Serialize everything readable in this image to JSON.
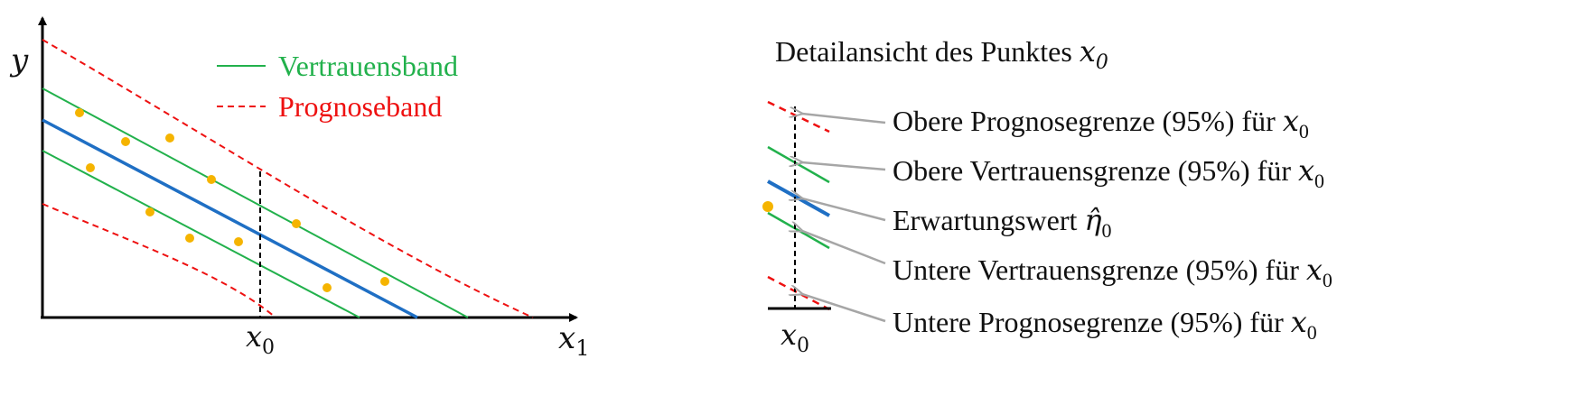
{
  "colors": {
    "regression": "#1f6fc4",
    "confidence": "#22b14c",
    "prediction": "#ee1111",
    "points": "#f5b400",
    "annotation_arrow": "#a6a6a6",
    "text": "#111111",
    "axis": "#000000"
  },
  "left_plot": {
    "axis_x_label": "x",
    "axis_x_sub": "1",
    "axis_y_label": "y",
    "x0_label": "x",
    "x0_sub": "0",
    "legend": {
      "confidence_label": "Vertrauensband",
      "prediction_label": "Prognoseband"
    },
    "points_count_note": "scatter of 10 data points"
  },
  "detail": {
    "title_text": "Detailansicht des Punktes ",
    "title_var": "x",
    "title_sub": "0",
    "x0_label": "x",
    "x0_sub": "0",
    "annotations": [
      {
        "text": "Obere Prognosegrenze (95%) für ",
        "var": "x",
        "sub": "0"
      },
      {
        "text": "Obere Vertrauensgrenze (95%) für ",
        "var": "x",
        "sub": "0"
      },
      {
        "text": "Erwartungswert ",
        "var": "η̂",
        "sub": "0"
      },
      {
        "text": "Untere Vertrauensgrenze (95%) für ",
        "var": "x",
        "sub": "0"
      },
      {
        "text": "Untere Prognosegrenze (95%) für ",
        "var": "x",
        "sub": "0"
      }
    ]
  }
}
